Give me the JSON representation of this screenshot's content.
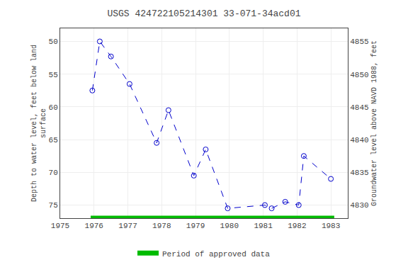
{
  "chart_data": {
    "type": "line",
    "title": "USGS 424722105214301 33-071-34acd01",
    "ylabel": "Depth to water level, feet below land\nsurface",
    "y2label": "Groundwater level above NAVD 1988, feet",
    "xlim": [
      1975,
      1983.5
    ],
    "xticks": [
      1975,
      1976,
      1977,
      1978,
      1979,
      1980,
      1981,
      1982,
      1983
    ],
    "ylim": [
      77,
      48
    ],
    "yticks": [
      50,
      55,
      60,
      65,
      70,
      75
    ],
    "y2lim": [
      4828,
      4857
    ],
    "y2ticks": [
      4830,
      4835,
      4840,
      4845,
      4850,
      4855
    ],
    "grid": true,
    "legend": "bottom",
    "series": [
      {
        "type": "line",
        "color": "#0000cc",
        "line_style": "dashed",
        "marker": "open circle",
        "x": [
          1975.95,
          1976.17,
          1976.5,
          1977.05,
          1977.85,
          1978.2,
          1978.95,
          1979.3,
          1979.95,
          1981.05,
          1981.25,
          1981.65,
          1982.05,
          1982.2,
          1983.0
        ],
        "values": [
          57.5,
          50.0,
          52.3,
          56.5,
          65.5,
          60.5,
          70.5,
          66.5,
          75.5,
          75.0,
          75.5,
          74.5,
          75.0,
          67.5,
          71.0
        ]
      },
      {
        "name": "Period of approved data",
        "type": "line",
        "color": "#00bb00",
        "line_style": "solid",
        "marker": "none",
        "x": [
          1975.9,
          1983.1
        ],
        "values": [
          77,
          77
        ]
      }
    ]
  }
}
